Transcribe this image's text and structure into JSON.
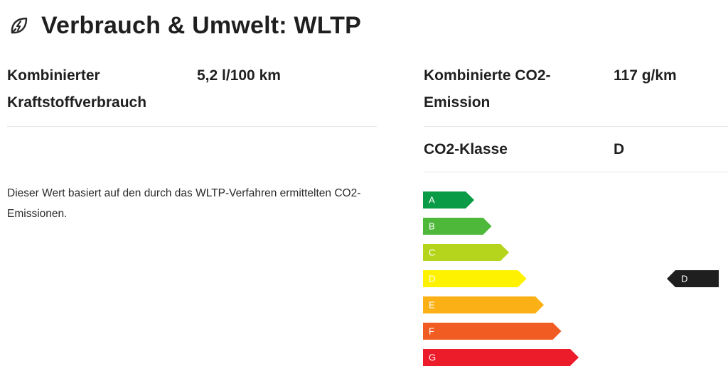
{
  "header": {
    "icon": "leaf-bolt-icon",
    "title": "Verbrauch & Umwelt: WLTP"
  },
  "specs": {
    "fuel": {
      "label": "Kombinierter Kraftstoffverbrauch",
      "value": "5,2 l/100 km"
    },
    "co2": {
      "label": "Kombinierte CO2-Emission",
      "value": "117 g/km"
    },
    "co2_class": {
      "label": "CO2-Klasse",
      "value": "D"
    }
  },
  "note": "Dieser Wert basiert auf den durch das WLTP-Verfahren ermittelten CO2-Emissionen.",
  "efficiency": {
    "classes": [
      {
        "letter": "A",
        "color": "#0a9b47"
      },
      {
        "letter": "B",
        "color": "#4eb83a"
      },
      {
        "letter": "C",
        "color": "#b5d51c"
      },
      {
        "letter": "D",
        "color": "#fef200"
      },
      {
        "letter": "E",
        "color": "#fbb116"
      },
      {
        "letter": "F",
        "color": "#f15c22"
      },
      {
        "letter": "G",
        "color": "#ec1c2a"
      }
    ],
    "current": "D",
    "marker_color": "#1f1f1f"
  }
}
